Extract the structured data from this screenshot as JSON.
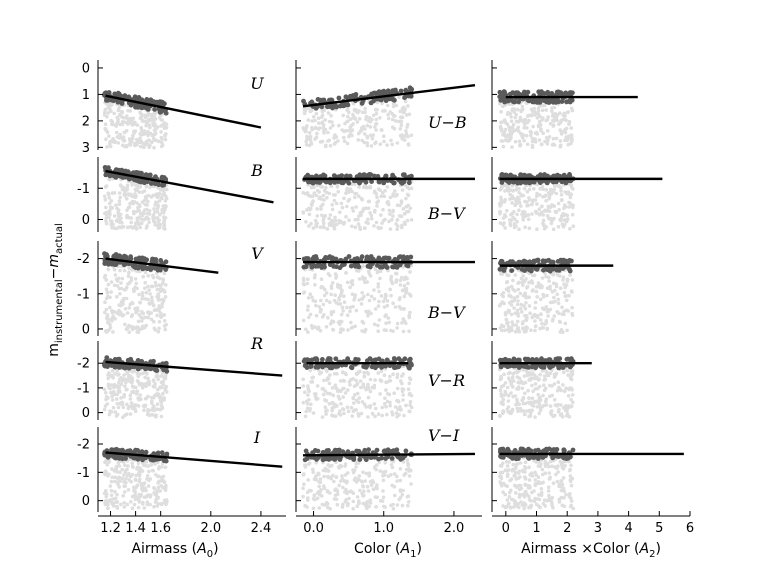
{
  "chart_data": {
    "type": "scatter",
    "title": "",
    "ylabel_main": "m",
    "ylabel_sub1": "instrumental",
    "ylabel_dash": "−",
    "ylabel_sub2": "actual",
    "columns": [
      {
        "label_main": "Airmass (",
        "label_sym": "A",
        "label_sub": "0",
        "label_end": ")",
        "ticks": [
          "1.2",
          "1.4",
          "1.6",
          "2.0",
          "2.4"
        ]
      },
      {
        "label_main": "Color (",
        "label_sym": "A",
        "label_sub": "1",
        "label_end": ")",
        "ticks": [
          "0.0",
          "1.0",
          "2.0"
        ]
      },
      {
        "label_main": "Airmass ×Color (",
        "label_sym": "A",
        "label_sub": "2",
        "label_end": ")",
        "ticks": [
          "0",
          "1",
          "2",
          "3",
          "4",
          "5",
          "6"
        ]
      }
    ],
    "rows": [
      {
        "band": "U",
        "y_ticks": [
          "0",
          "1",
          "2",
          "3"
        ],
        "color_labels": [
          "U−B",
          "",
          ""
        ],
        "fits": [
          {
            "x0": 1.16,
            "y0": 1.05,
            "x1": 2.4,
            "y1": 2.25
          },
          {
            "x0": -0.15,
            "y0": 1.45,
            "x1": 2.3,
            "y1": 0.65
          },
          {
            "x0": 0,
            "y0": 1.1,
            "x1": 4.3,
            "y1": 1.1
          }
        ]
      },
      {
        "band": "B",
        "y_ticks": [
          "-1",
          "0"
        ],
        "color_labels": [
          "B−V",
          "",
          ""
        ],
        "fits": [
          {
            "x0": 1.16,
            "y0": -1.55,
            "x1": 2.5,
            "y1": -0.55
          },
          {
            "x0": -0.15,
            "y0": -1.3,
            "x1": 2.3,
            "y1": -1.3
          },
          {
            "x0": -0.2,
            "y0": -1.3,
            "x1": 5.1,
            "y1": -1.3
          }
        ]
      },
      {
        "band": "V",
        "y_ticks": [
          "-2",
          "-1",
          "0"
        ],
        "color_labels": [
          "B−V",
          "",
          ""
        ],
        "fits": [
          {
            "x0": 1.16,
            "y0": -2.0,
            "x1": 2.06,
            "y1": -1.6
          },
          {
            "x0": -0.15,
            "y0": -1.9,
            "x1": 2.3,
            "y1": -1.9
          },
          {
            "x0": -0.2,
            "y0": -1.8,
            "x1": 3.5,
            "y1": -1.8
          }
        ]
      },
      {
        "band": "R",
        "y_ticks": [
          "-2",
          "-1",
          "0"
        ],
        "color_labels": [
          "V−R",
          "",
          ""
        ],
        "fits": [
          {
            "x0": 1.16,
            "y0": -2.05,
            "x1": 2.57,
            "y1": -1.5
          },
          {
            "x0": -0.1,
            "y0": -2.0,
            "x1": 1.35,
            "y1": -2.0
          },
          {
            "x0": -0.2,
            "y0": -2.0,
            "x1": 2.8,
            "y1": -2.0
          }
        ]
      },
      {
        "band": "I",
        "y_ticks": [
          "-2",
          "-1",
          "0"
        ],
        "color_labels": [
          "V−I",
          "",
          ""
        ],
        "fits": [
          {
            "x0": 1.16,
            "y0": -1.7,
            "x1": 2.57,
            "y1": -1.2
          },
          {
            "x0": -0.15,
            "y0": -1.6,
            "x1": 2.3,
            "y1": -1.65
          },
          {
            "x0": -0.2,
            "y0": -1.65,
            "x1": 5.8,
            "y1": -1.65
          }
        ]
      }
    ],
    "colors": {
      "fit_line": "#000000",
      "highlight_points": "#5a5a5a",
      "background_points": "#dedede"
    },
    "grid": false
  }
}
